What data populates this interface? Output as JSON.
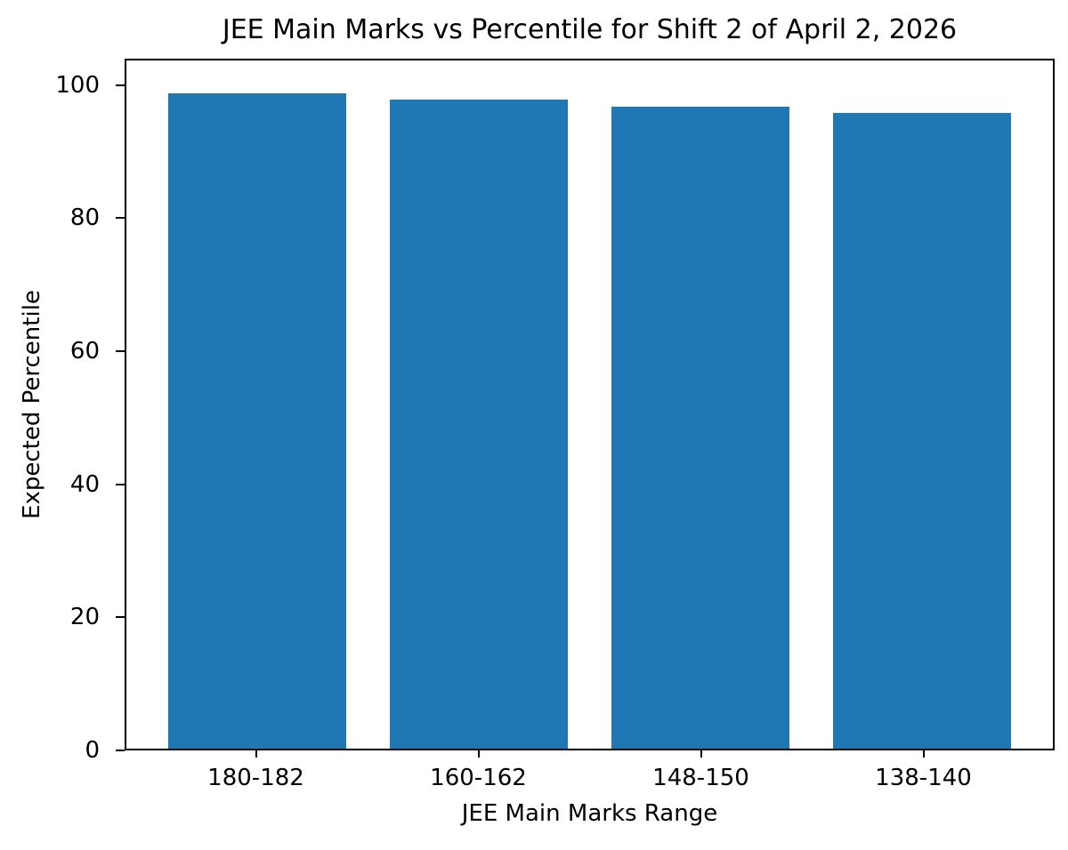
{
  "chart_data": {
    "type": "bar",
    "title": "JEE Main Marks vs Percentile for Shift 2 of April 2, 2026",
    "categories": [
      "180-182",
      "160-162",
      "148-150",
      "138-140"
    ],
    "values": [
      99,
      98,
      97,
      96
    ],
    "xlabel": "JEE Main Marks Range",
    "ylabel": "Expected Percentile",
    "yticks": [
      0,
      20,
      40,
      60,
      80,
      100
    ],
    "ylim": [
      0,
      103.95
    ],
    "xlim": [
      -0.59,
      3.59
    ],
    "bar_width": 0.8,
    "bar_color": "#1f77b4",
    "axis_color": "#000000",
    "background_color": "#ffffff",
    "grid": false
  }
}
